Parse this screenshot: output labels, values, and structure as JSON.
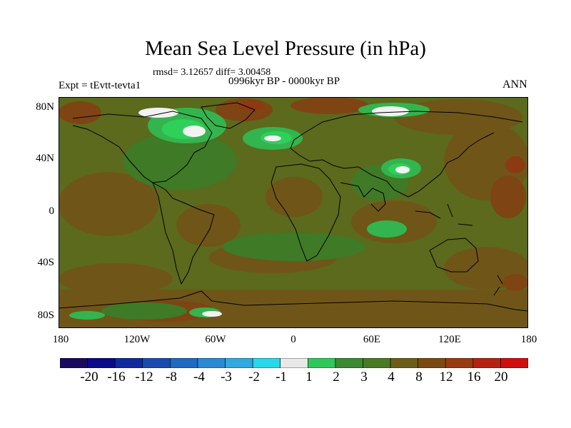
{
  "title": "Mean Sea Level Pressure (in hPa)",
  "stats": "rmsd= 3.12657 diff= 3.00458",
  "experiment": "Expt = tEvtt-tevta1",
  "period": "0996kyr BP - 0000kyr BP",
  "season": "ANN",
  "lat_ticks": [
    "80N",
    "40N",
    "0",
    "40S",
    "80S"
  ],
  "lon_ticks": [
    "180",
    "120W",
    "60W",
    "0",
    "60E",
    "120E",
    "180"
  ],
  "colorbar": {
    "labels": [
      "-20",
      "-16",
      "-12",
      "-8",
      "-4",
      "-3",
      "-2",
      "-1",
      "1",
      "2",
      "3",
      "4",
      "8",
      "12",
      "16",
      "20"
    ],
    "colors": [
      "#1a0a5e",
      "#0a0a8a",
      "#0f2a9e",
      "#1a4ab0",
      "#1e6ac4",
      "#2a8ad4",
      "#30a8e0",
      "#28d8e8",
      "#e8e8e8",
      "#2ec85a",
      "#3a8a32",
      "#4a7a24",
      "#6b5e18",
      "#7a4a12",
      "#9a3a10",
      "#b82010",
      "#d00e0e"
    ]
  },
  "map_colors": {
    "base": "#5b6a1c",
    "brown": "#6f5618",
    "dark_brown": "#7f4414",
    "reddish": "#8c3a12",
    "olive": "#3f7a26",
    "green": "#34b44e",
    "bright_green": "#2fd05a",
    "white": "#f2f2f2"
  }
}
